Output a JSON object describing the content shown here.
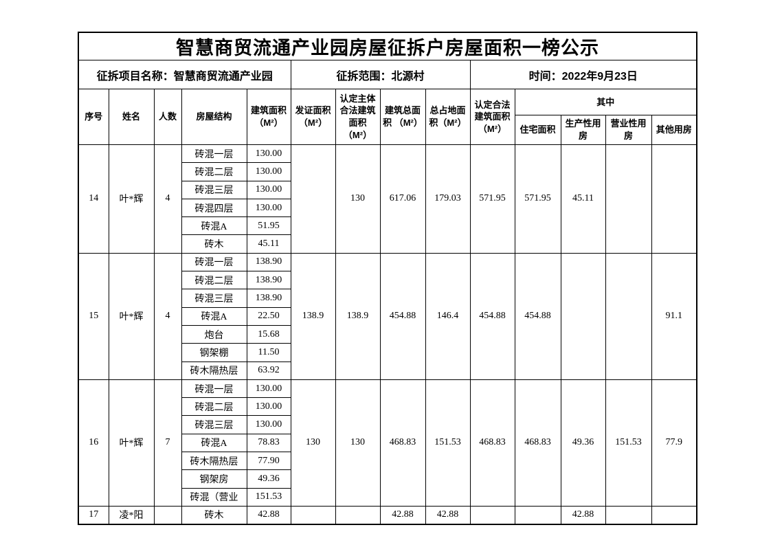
{
  "title": "智慧商贸流通产业园房屋征拆户房屋面积一榜公示",
  "info": {
    "project": "征拆项目名称：智慧商贸流通产业园",
    "scope": "征拆范围：北源村",
    "date": "时间：2022年9月23日"
  },
  "headers": {
    "seq": "序号",
    "name": "姓名",
    "people": "人数",
    "structure": "房屋结构",
    "build_area": "建筑面积\n（M²）",
    "cert_area": "发证面积\n（M²）",
    "main_legal_area": "认定主体\n合法建筑\n面积\n（M²）",
    "total_build_area": "建筑总面\n积 （M²）",
    "total_land_area": "总占地面\n积（M²）",
    "legal_area": "认定合法\n建筑面积\n（M²）",
    "among": "其中",
    "residential": "住宅面积",
    "production": "生产性用\n房",
    "business": "营业性用\n房",
    "other": "其他用房"
  },
  "rows": [
    {
      "seq": "14",
      "name": "叶*辉",
      "people": "4",
      "structures": [
        {
          "type": "砖混一层",
          "area": "130.00"
        },
        {
          "type": "砖混二层",
          "area": "130.00"
        },
        {
          "type": "砖混三层",
          "area": "130.00"
        },
        {
          "type": "砖混四层",
          "area": "130.00"
        },
        {
          "type": "砖混A",
          "area": "51.95"
        },
        {
          "type": "砖木",
          "area": "45.11"
        }
      ],
      "cert_area": "",
      "main_legal_area": "130",
      "total_build_area": "617.06",
      "total_land_area": "179.03",
      "legal_area": "571.95",
      "residential": "571.95",
      "production": "45.11",
      "business": "",
      "other": ""
    },
    {
      "seq": "15",
      "name": "叶*辉",
      "people": "4",
      "structures": [
        {
          "type": "砖混一层",
          "area": "138.90"
        },
        {
          "type": "砖混二层",
          "area": "138.90"
        },
        {
          "type": "砖混三层",
          "area": "138.90"
        },
        {
          "type": "砖混A",
          "area": "22.50"
        },
        {
          "type": "炮台",
          "area": "15.68"
        },
        {
          "type": "钢架棚",
          "area": "11.50"
        },
        {
          "type": "砖木隔热层",
          "area": "63.92"
        }
      ],
      "cert_area": "138.9",
      "main_legal_area": "138.9",
      "total_build_area": "454.88",
      "total_land_area": "146.4",
      "legal_area": "454.88",
      "residential": "454.88",
      "production": "",
      "business": "",
      "other": "91.1"
    },
    {
      "seq": "16",
      "name": "叶*辉",
      "people": "7",
      "structures": [
        {
          "type": "砖混一层",
          "area": "130.00"
        },
        {
          "type": "砖混二层",
          "area": "130.00"
        },
        {
          "type": "砖混三层",
          "area": "130.00"
        },
        {
          "type": "砖混A",
          "area": "78.83"
        },
        {
          "type": "砖木隔热层",
          "area": "77.90"
        },
        {
          "type": "钢架房",
          "area": "49.36"
        },
        {
          "type": "砖混（营业",
          "area": "151.53"
        }
      ],
      "cert_area": "130",
      "main_legal_area": "130",
      "total_build_area": "468.83",
      "total_land_area": "151.53",
      "legal_area": "468.83",
      "residential": "468.83",
      "production": "49.36",
      "business": "151.53",
      "other": "77.9"
    },
    {
      "seq": "17",
      "name": "凌*阳",
      "people": "",
      "structures": [
        {
          "type": "砖木",
          "area": "42.88"
        }
      ],
      "cert_area": "",
      "main_legal_area": "",
      "total_build_area": "42.88",
      "total_land_area": "42.88",
      "legal_area": "",
      "residential": "",
      "production": "42.88",
      "business": "",
      "other": ""
    }
  ],
  "colors": {
    "border": "#000000",
    "text": "#000000",
    "background": "#ffffff"
  }
}
